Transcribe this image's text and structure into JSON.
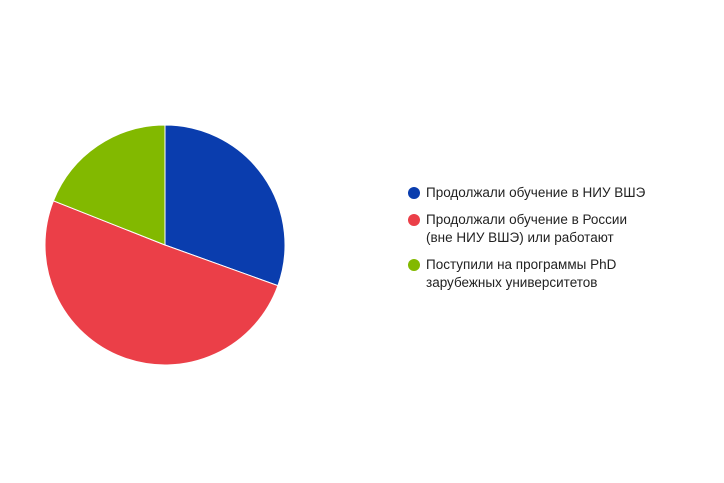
{
  "chart_data": {
    "type": "pie",
    "title": "",
    "legend_position": "right",
    "slices": [
      {
        "label": "Продолжали обучение в НИУ ВШЭ",
        "value": 30.5,
        "color": "#0a3dae"
      },
      {
        "label": "Продолжали обучение в России\n(вне НИУ ВШЭ) или работают",
        "value": 50.5,
        "color": "#eb3f48"
      },
      {
        "label": "Поступили на программы PhD\nзарубежных университетов",
        "value": 19.0,
        "color": "#82b900"
      }
    ]
  }
}
